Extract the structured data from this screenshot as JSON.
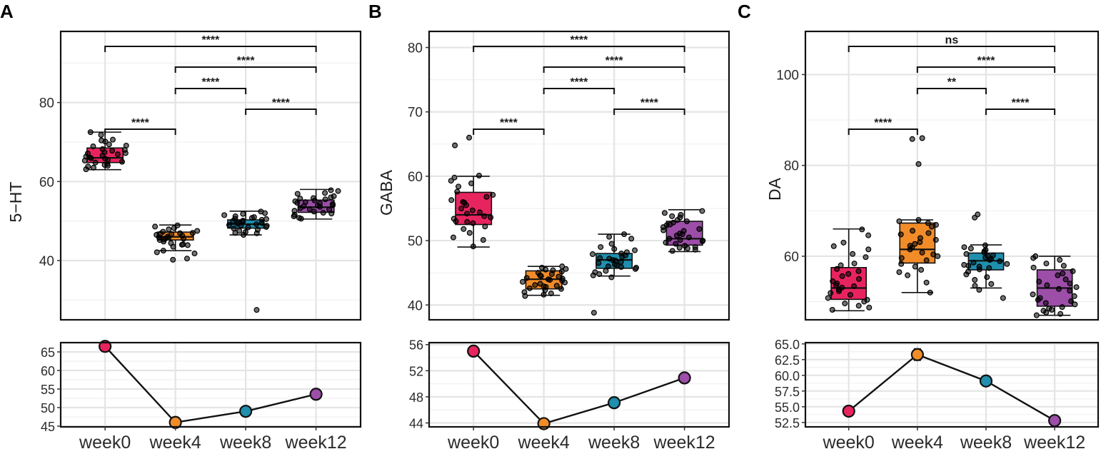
{
  "colors": {
    "week0": "#e8245f",
    "week4": "#f28c28",
    "week8": "#1f8fad",
    "week12": "#9c4ea8"
  },
  "chart_data": [
    {
      "panel": "A",
      "type": "box",
      "ylabel": "5−HT",
      "categories": [
        "week0",
        "week4",
        "week8",
        "week12"
      ],
      "ylim": [
        25,
        98
      ],
      "yticks": [
        40,
        60,
        80
      ],
      "boxes": [
        {
          "name": "week0",
          "whisker_low": 63,
          "q1": 64.8,
          "median": 66,
          "q3": 68.5,
          "whisker_high": 72.5
        },
        {
          "name": "week4",
          "whisker_low": 42.5,
          "q1": 45.2,
          "median": 46,
          "q3": 47.2,
          "whisker_high": 49
        },
        {
          "name": "week8",
          "whisker_low": 46.5,
          "q1": 48.2,
          "median": 49.2,
          "q3": 50.3,
          "whisker_high": 52.5
        },
        {
          "name": "week12",
          "whisker_low": 50.5,
          "q1": 52.2,
          "median": 53.5,
          "q3": 55.3,
          "whisker_high": 58
        }
      ],
      "points": [
        [
          64.2,
          65.5,
          67.1,
          63.5,
          68.2,
          70.1,
          66.3,
          65.0,
          69.4,
          71.8,
          64.8,
          66.9,
          67.8,
          63.1,
          65.8,
          68.9,
          70.6,
          66.1,
          64.0,
          67.4,
          72.5,
          65.3,
          68.0,
          69.1,
          63.8,
          66.6,
          67.2,
          65.9,
          70.4,
          64.5
        ],
        [
          44.1,
          45.6,
          46.8,
          47.5,
          40.2,
          42.5,
          48.9,
          46.1,
          45.2,
          43.9,
          47.9,
          45.8,
          46.5,
          41.8,
          44.8,
          47.0,
          48.2,
          45.3,
          46.9,
          44.4,
          40.5,
          46.3,
          45.9,
          47.3,
          43.5,
          42.1,
          48.6,
          46.7,
          45.5,
          44.0
        ],
        [
          48.5,
          49.3,
          50.1,
          47.2,
          51.8,
          52.4,
          46.5,
          49.9,
          50.6,
          48.1,
          27.5,
          49.0,
          51.2,
          47.8,
          50.3,
          48.8,
          52.0,
          49.5,
          46.9,
          50.8,
          48.4,
          51.5,
          49.7,
          47.5,
          50.0,
          48.9,
          51.0,
          49.2,
          47.0,
          50.5
        ],
        [
          51.2,
          53.0,
          54.5,
          55.8,
          56.9,
          57.6,
          52.4,
          54.0,
          53.6,
          55.2,
          50.8,
          52.9,
          56.3,
          54.8,
          51.6,
          53.3,
          55.5,
          57.1,
          52.1,
          54.3,
          53.8,
          56.0,
          50.6,
          55.0,
          54.6,
          52.6,
          53.9,
          57.8,
          51.9,
          55.7
        ]
      ],
      "comparisons": [
        {
          "groups": [
            "week0",
            "week12"
          ],
          "label": "****"
        },
        {
          "groups": [
            "week4",
            "week12"
          ],
          "label": "****"
        },
        {
          "groups": [
            "week4",
            "week8"
          ],
          "label": "****"
        },
        {
          "groups": [
            "week8",
            "week12"
          ],
          "label": "****"
        },
        {
          "groups": [
            "week0",
            "week4"
          ],
          "label": "****"
        }
      ],
      "trend": {
        "means": [
          66.5,
          46.0,
          49.0,
          53.6
        ],
        "errors": [
          0.3,
          0.3,
          0.3,
          0.3
        ],
        "ylim": [
          44.8,
          67.5
        ],
        "yticks": [
          45,
          50,
          55,
          60,
          65
        ],
        "ytick_labels": [
          "45",
          "50",
          "55",
          "60",
          "65"
        ]
      }
    },
    {
      "panel": "B",
      "type": "box",
      "ylabel": "GABA",
      "categories": [
        "week0",
        "week4",
        "week8",
        "week12"
      ],
      "ylim": [
        37.7,
        82.5
      ],
      "yticks": [
        40,
        50,
        60,
        70,
        80
      ],
      "boxes": [
        {
          "name": "week0",
          "whisker_low": 49,
          "q1": 52.5,
          "median": 54,
          "q3": 57.5,
          "whisker_high": 60
        },
        {
          "name": "week4",
          "whisker_low": 41.5,
          "q1": 42.5,
          "median": 44,
          "q3": 45.3,
          "whisker_high": 46
        },
        {
          "name": "week8",
          "whisker_low": 44.5,
          "q1": 45.7,
          "median": 47,
          "q3": 48,
          "whisker_high": 51
        },
        {
          "name": "week12",
          "whisker_low": 48.3,
          "q1": 49.3,
          "median": 50.3,
          "q3": 53,
          "whisker_high": 54.8
        }
      ],
      "points": [
        [
          49.1,
          50.5,
          51.8,
          52.7,
          53.4,
          54.2,
          55.0,
          55.9,
          56.8,
          57.6,
          58.4,
          59.3,
          60.1,
          64.8,
          66.0,
          53.0,
          54.7,
          51.2,
          56.3,
          52.2,
          58.9,
          53.8,
          55.5,
          57.1,
          50.1,
          54.4,
          56.0,
          52.9,
          59.8,
          53.6
        ],
        [
          41.4,
          42.0,
          42.6,
          43.1,
          43.6,
          44.0,
          44.5,
          45.0,
          45.5,
          46.0,
          42.3,
          43.3,
          44.2,
          45.2,
          41.8,
          42.9,
          43.8,
          44.8,
          45.8,
          43.5,
          42.5,
          44.6,
          41.6,
          45.4,
          43.0,
          44.1,
          42.8,
          45.6,
          43.9,
          44.4
        ],
        [
          44.3,
          45.1,
          45.6,
          46.2,
          46.7,
          47.2,
          47.7,
          48.2,
          48.7,
          49.5,
          50.3,
          51.0,
          38.8,
          46.0,
          47.0,
          45.8,
          48.0,
          46.5,
          47.5,
          44.8,
          49.0,
          46.9,
          45.3,
          47.9,
          48.5,
          46.3,
          44.6,
          50.6,
          47.3,
          45.9
        ],
        [
          48.4,
          49.0,
          49.5,
          50.0,
          50.5,
          51.1,
          51.8,
          52.5,
          53.2,
          54.0,
          54.6,
          48.8,
          49.7,
          50.3,
          51.5,
          52.8,
          53.6,
          49.2,
          50.8,
          52.1,
          54.3,
          48.6,
          51.0,
          53.0,
          49.9,
          52.4,
          50.1,
          53.8,
          48.9,
          51.6
        ]
      ],
      "comparisons": [
        {
          "groups": [
            "week0",
            "week12"
          ],
          "label": "****"
        },
        {
          "groups": [
            "week4",
            "week12"
          ],
          "label": "****"
        },
        {
          "groups": [
            "week4",
            "week8"
          ],
          "label": "****"
        },
        {
          "groups": [
            "week8",
            "week12"
          ],
          "label": "****"
        },
        {
          "groups": [
            "week0",
            "week4"
          ],
          "label": "****"
        }
      ],
      "trend": {
        "means": [
          55.0,
          43.9,
          47.1,
          50.9
        ],
        "errors": [
          0.3,
          0.3,
          0.3,
          0.3
        ],
        "ylim": [
          43.4,
          56.3
        ],
        "yticks": [
          44,
          48,
          52,
          56
        ],
        "ytick_labels": [
          "44",
          "48",
          "52",
          "56"
        ]
      }
    },
    {
      "panel": "C",
      "type": "box",
      "ylabel": "DA",
      "categories": [
        "week0",
        "week4",
        "week8",
        "week12"
      ],
      "ylim": [
        46,
        109.5
      ],
      "yticks": [
        60,
        80,
        100
      ],
      "boxes": [
        {
          "name": "week0",
          "whisker_low": 48,
          "q1": 50.5,
          "median": 53,
          "q3": 57.5,
          "whisker_high": 66
        },
        {
          "name": "week4",
          "whisker_low": 52,
          "q1": 58.5,
          "median": 61.5,
          "q3": 67.3,
          "whisker_high": 68
        },
        {
          "name": "week8",
          "whisker_low": 53,
          "q1": 57,
          "median": 59,
          "q3": 60.7,
          "whisker_high": 62.5
        },
        {
          "name": "week12",
          "whisker_low": 47,
          "q1": 49,
          "median": 53,
          "q3": 57,
          "whisker_high": 60
        }
      ],
      "points": [
        [
          48.2,
          49.1,
          50.0,
          50.8,
          51.5,
          52.3,
          53.1,
          54.0,
          55.0,
          56.1,
          57.2,
          58.4,
          59.8,
          61.5,
          63.0,
          64.6,
          65.9,
          49.6,
          51.9,
          53.6,
          54.5,
          56.7,
          60.5,
          48.7,
          52.7,
          55.6,
          58.0,
          62.2,
          50.4,
          53.4
        ],
        [
          52.0,
          54.2,
          55.8,
          57.0,
          58.3,
          59.1,
          60.0,
          60.8,
          61.5,
          62.3,
          63.1,
          64.0,
          64.8,
          65.6,
          66.5,
          67.3,
          68.0,
          80.3,
          86.0,
          85.8,
          56.5,
          59.6,
          61.9,
          63.6,
          65.1,
          66.9,
          57.7,
          60.4,
          62.7,
          67.7
        ],
        [
          50.8,
          52.6,
          53.5,
          54.8,
          56.0,
          57.1,
          57.7,
          58.3,
          58.9,
          59.4,
          60.0,
          60.5,
          61.1,
          61.7,
          62.4,
          69.2,
          68.5,
          55.4,
          57.4,
          58.6,
          59.2,
          60.2,
          61.4,
          56.6,
          58.1,
          59.7,
          60.8,
          62.0,
          53.9,
          57.9
        ],
        [
          47.0,
          47.6,
          48.2,
          48.8,
          49.4,
          50.1,
          50.8,
          51.6,
          52.4,
          53.2,
          54.0,
          54.9,
          55.8,
          56.7,
          57.5,
          58.4,
          59.2,
          60.0,
          47.3,
          48.5,
          49.7,
          51.2,
          52.8,
          54.4,
          56.2,
          57.9,
          59.6,
          48.0,
          50.4,
          53.6
        ]
      ],
      "comparisons": [
        {
          "groups": [
            "week0",
            "week12"
          ],
          "label": "ns"
        },
        {
          "groups": [
            "week4",
            "week12"
          ],
          "label": "****"
        },
        {
          "groups": [
            "week4",
            "week8"
          ],
          "label": "**"
        },
        {
          "groups": [
            "week8",
            "week12"
          ],
          "label": "****"
        },
        {
          "groups": [
            "week0",
            "week4"
          ],
          "label": "****"
        }
      ],
      "trend": {
        "means": [
          54.3,
          63.3,
          59.1,
          52.8
        ],
        "errors": [
          0.4,
          0.9,
          0.4,
          0.4
        ],
        "ylim": [
          51.8,
          65.2
        ],
        "yticks": [
          52.5,
          55.0,
          57.5,
          60.0,
          62.5,
          65.0
        ],
        "ytick_labels": [
          "52.5",
          "55.0",
          "57.5",
          "60.0",
          "62.5",
          "65.0"
        ]
      }
    }
  ]
}
